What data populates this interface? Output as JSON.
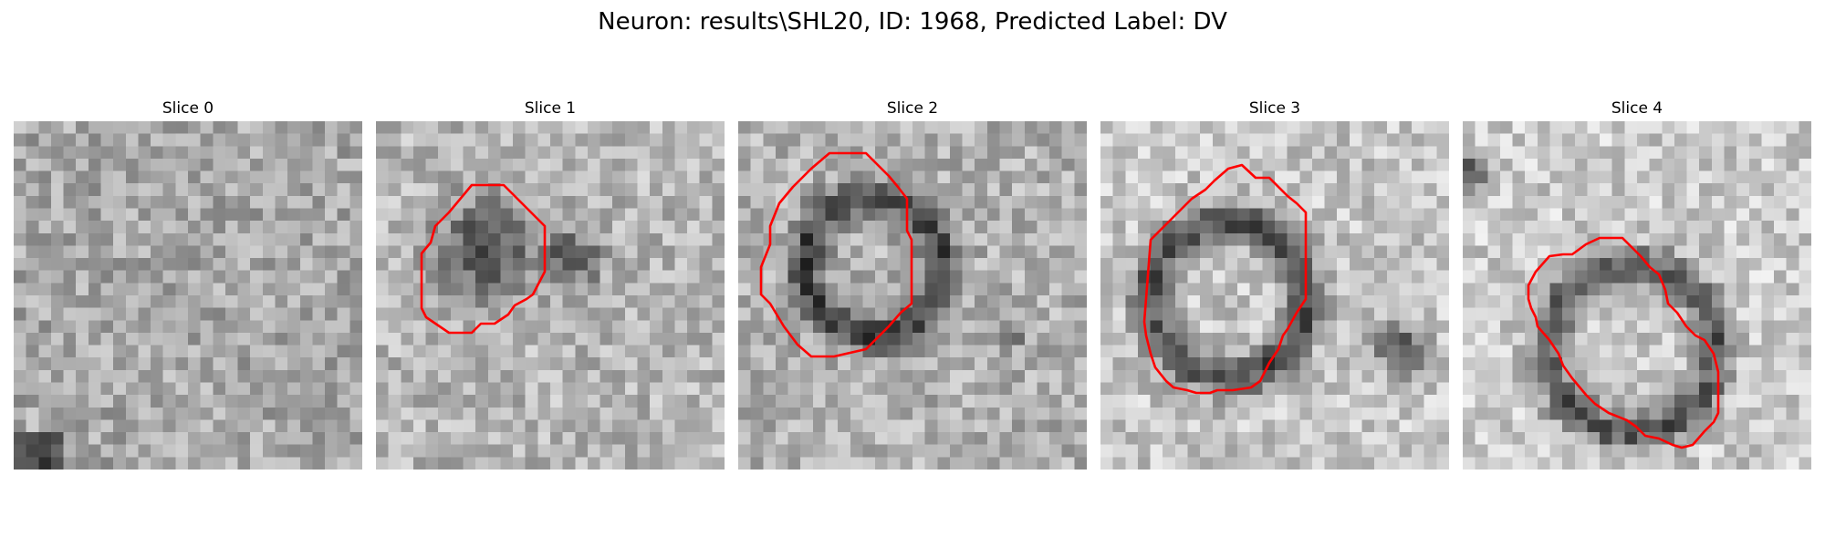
{
  "figure": {
    "title": "Neuron: results\\SHL20, ID: 1968, Predicted Label: DV"
  },
  "colors": {
    "outline": "#ff0000",
    "background": "#ffffff"
  },
  "panels": [
    {
      "title": "Slice 0",
      "has_outline": false
    },
    {
      "title": "Slice 1",
      "has_outline": true
    },
    {
      "title": "Slice 2",
      "has_outline": true
    },
    {
      "title": "Slice 3",
      "has_outline": true
    },
    {
      "title": "Slice 4",
      "has_outline": true
    }
  ]
}
